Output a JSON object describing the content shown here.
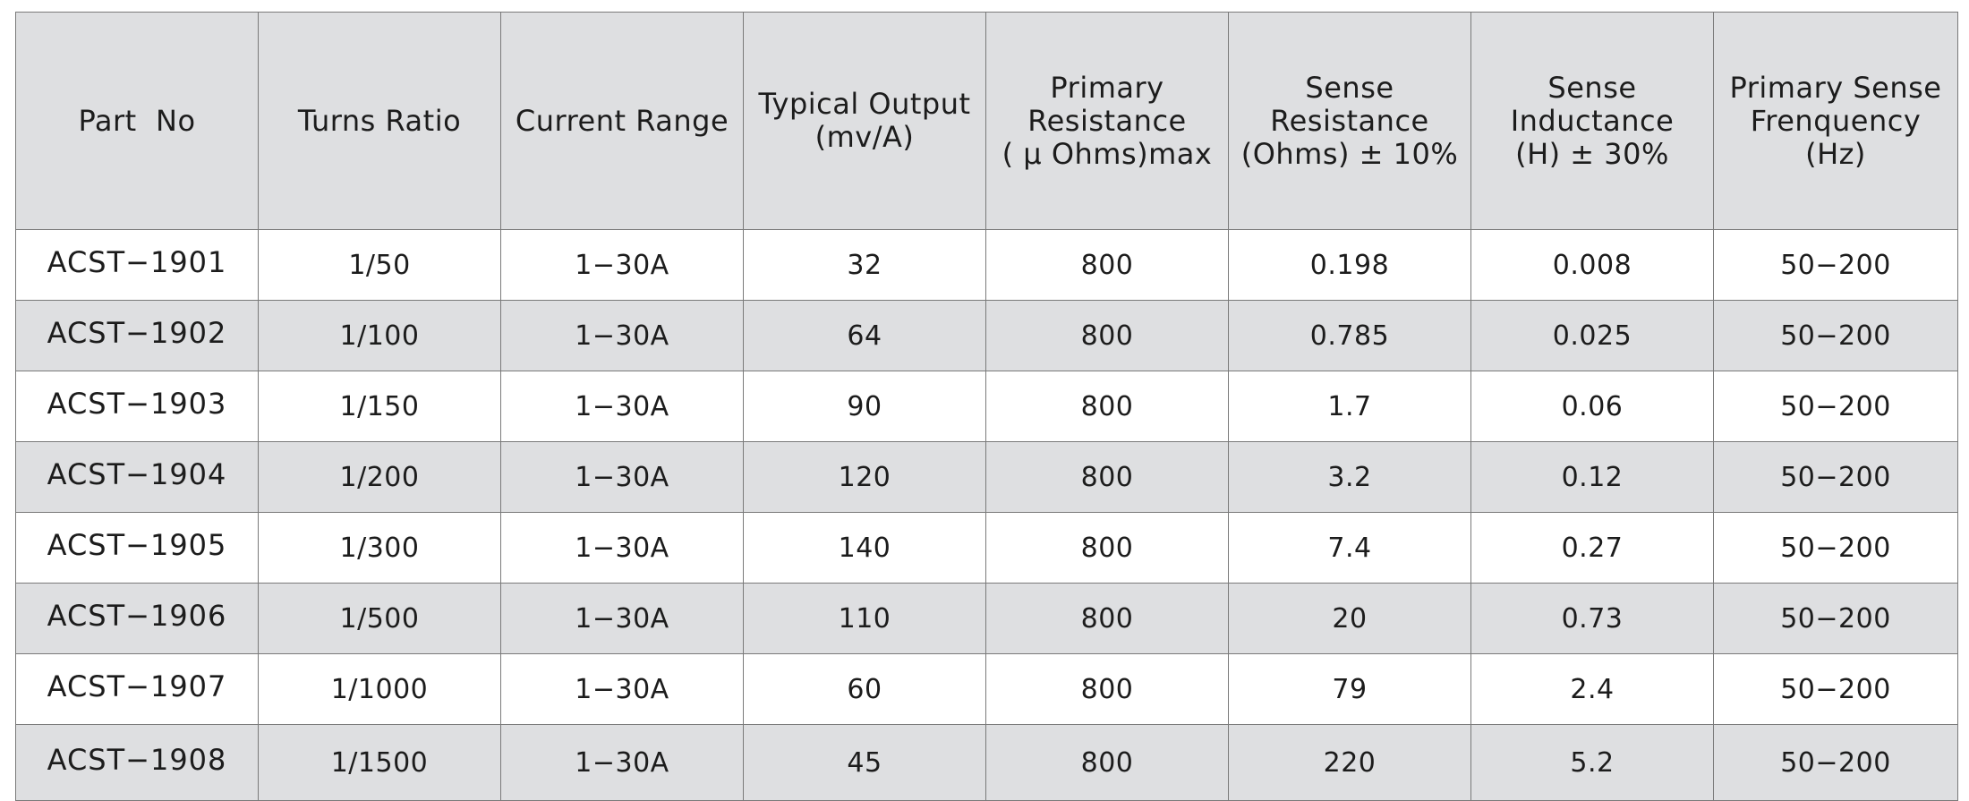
{
  "table": {
    "headers": [
      [
        "Part  No"
      ],
      [
        "Turns Ratio"
      ],
      [
        "Current Range"
      ],
      [
        "Typical Output",
        "(mv/A)"
      ],
      [
        "Primary",
        "Resistance",
        "( μ Ohms)max"
      ],
      [
        "Sense",
        "Resistance",
        "(Ohms) ± 10%"
      ],
      [
        "Sense",
        "Inductance",
        "(H) ± 30%"
      ],
      [
        "Primary Sense",
        "Frenquency",
        "(Hz)"
      ]
    ],
    "rows": [
      [
        "ACST−1901",
        "1/50",
        "1−30A",
        "32",
        "800",
        "0.198",
        "0.008",
        "50−200"
      ],
      [
        "ACST−1902",
        "1/100",
        "1−30A",
        "64",
        "800",
        "0.785",
        "0.025",
        "50−200"
      ],
      [
        "ACST−1903",
        "1/150",
        "1−30A",
        "90",
        "800",
        "1.7",
        "0.06",
        "50−200"
      ],
      [
        "ACST−1904",
        "1/200",
        "1−30A",
        "120",
        "800",
        "3.2",
        "0.12",
        "50−200"
      ],
      [
        "ACST−1905",
        "1/300",
        "1−30A",
        "140",
        "800",
        "7.4",
        "0.27",
        "50−200"
      ],
      [
        "ACST−1906",
        "1/500",
        "1−30A",
        "110",
        "800",
        "20",
        "0.73",
        "50−200"
      ],
      [
        "ACST−1907",
        "1/1000",
        "1−30A",
        "60",
        "800",
        "79",
        "2.4",
        "50−200"
      ],
      [
        "ACST−1908",
        "1/1500",
        "1−30A",
        "45",
        "800",
        "220",
        "5.2",
        "50−200"
      ]
    ]
  }
}
